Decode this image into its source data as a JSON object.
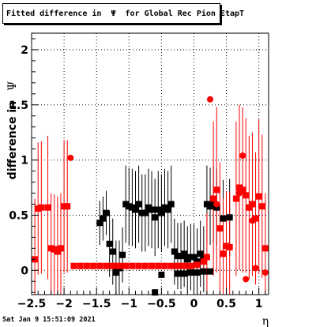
{
  "title": "Fitted difference in  Ψ  for Global Rec Pion EtapT",
  "ylabel_prefix": "difference in",
  "ylabel_symbol": "Ψ",
  "xlabel": "η",
  "timestamp": "Sat Jan  9 15:51:09 2021",
  "colors": {
    "series_black": "#000000",
    "series_red": "#ff0000",
    "frame": "#000000",
    "grid": "#000000"
  },
  "chart_data": {
    "type": "scatter",
    "xlim": [
      -2.5,
      1.15
    ],
    "ylim": [
      -0.22,
      2.15
    ],
    "xticks": [
      -2.5,
      -2,
      -1.5,
      -1,
      -0.5,
      0,
      0.5,
      1
    ],
    "xtick_labels": [
      "−2.5",
      "−2",
      "−1.5",
      "−1",
      "−0.5",
      "0",
      "0.5",
      "1"
    ],
    "yticks": [
      0,
      0.5,
      1,
      1.5,
      2
    ],
    "ytick_labels": [
      "0",
      "0.5",
      "1",
      "1.5",
      "2"
    ],
    "grid": true,
    "series": [
      {
        "color": "#000000",
        "marker": "square",
        "points": [
          {
            "x": -1.45,
            "y": 0.43,
            "err": 0.2
          },
          {
            "x": -1.4,
            "y": 0.47,
            "err": 0.2
          },
          {
            "x": -1.35,
            "y": 0.52,
            "err": 0.2
          },
          {
            "x": -1.3,
            "y": 0.24,
            "err": 0.3
          },
          {
            "x": -1.25,
            "y": 0.17,
            "err": 0.3
          },
          {
            "x": -1.2,
            "y": 0.02,
            "err": 0.25
          },
          {
            "x": -1.15,
            "y": 0.02,
            "err": 0.25
          },
          {
            "x": -1.1,
            "y": 0.14,
            "err": 0.25
          },
          {
            "x": -1.05,
            "y": 0.6,
            "err": 0.35
          },
          {
            "x": -1.0,
            "y": 0.58,
            "err": 0.35
          },
          {
            "x": -0.95,
            "y": 0.57,
            "err": 0.35
          },
          {
            "x": -0.9,
            "y": 0.55,
            "err": 0.35
          },
          {
            "x": -0.85,
            "y": 0.6,
            "err": 0.35
          },
          {
            "x": -0.8,
            "y": 0.52,
            "err": 0.35
          },
          {
            "x": -0.75,
            "y": 0.52,
            "err": 0.35
          },
          {
            "x": -0.7,
            "y": 0.57,
            "err": 0.35
          },
          {
            "x": -0.65,
            "y": 0.55,
            "err": 0.35
          },
          {
            "x": -0.6,
            "y": 0.48,
            "err": 0.35
          },
          {
            "x": -0.55,
            "y": 0.55,
            "err": 0.35
          },
          {
            "x": -0.5,
            "y": 0.52,
            "err": 0.35
          },
          {
            "x": -0.45,
            "y": 0.57,
            "err": 0.35
          },
          {
            "x": -0.4,
            "y": 0.55,
            "err": 0.35
          },
          {
            "x": -0.35,
            "y": 0.6,
            "err": 0.35
          },
          {
            "x": -0.3,
            "y": 0.17,
            "err": 0.3
          },
          {
            "x": -0.25,
            "y": 0.13,
            "err": 0.3
          },
          {
            "x": -0.2,
            "y": 0.13,
            "err": 0.3
          },
          {
            "x": -0.15,
            "y": 0.15,
            "err": 0.3
          },
          {
            "x": -0.1,
            "y": 0.1,
            "err": 0.3
          },
          {
            "x": -0.05,
            "y": 0.12,
            "err": 0.3
          },
          {
            "x": 0.0,
            "y": 0.12,
            "err": 0.3
          },
          {
            "x": 0.05,
            "y": 0.08,
            "err": 0.3
          },
          {
            "x": 0.1,
            "y": 0.15,
            "err": 0.3
          },
          {
            "x": 0.15,
            "y": 0.1,
            "err": 0.3
          },
          {
            "x": 0.2,
            "y": 0.6,
            "err": 0.35
          },
          {
            "x": 0.25,
            "y": 0.58,
            "err": 0.35
          },
          {
            "x": 0.3,
            "y": 0.6,
            "err": 0.35
          },
          {
            "x": 0.35,
            "y": 0.57,
            "err": 0.35
          },
          {
            "x": 0.45,
            "y": 0.47,
            "err": 0.35
          },
          {
            "x": 0.55,
            "y": 0.48,
            "err": 0.35
          },
          {
            "x": -1.2,
            "y": -0.02,
            "err": 0.0
          },
          {
            "x": -0.6,
            "y": -0.2,
            "err": 0.0
          },
          {
            "x": -0.5,
            "y": -0.04,
            "err": 0.0
          },
          {
            "x": -0.25,
            "y": -0.03,
            "err": 0.0
          },
          {
            "x": -0.15,
            "y": -0.03,
            "err": 0.0
          },
          {
            "x": -0.05,
            "y": -0.02,
            "err": 0.0
          },
          {
            "x": 0.05,
            "y": -0.02,
            "err": 0.0
          },
          {
            "x": 0.15,
            "y": -0.01,
            "err": 0.0
          },
          {
            "x": 0.25,
            "y": -0.01,
            "err": 0.0
          }
        ]
      },
      {
        "color": "#ff0000",
        "marker": "square",
        "points": [
          {
            "x": -2.45,
            "y": 0.1,
            "err": 0.55
          },
          {
            "x": -2.4,
            "y": 0.56,
            "err": 0.6
          },
          {
            "x": -2.35,
            "y": 0.57,
            "err": 0.6
          },
          {
            "x": -2.25,
            "y": 0.57,
            "err": 0.65
          },
          {
            "x": -2.2,
            "y": 0.2,
            "err": 0.5
          },
          {
            "x": -2.15,
            "y": 0.19,
            "err": 0.5
          },
          {
            "x": -2.1,
            "y": 0.17,
            "err": 0.5
          },
          {
            "x": -2.05,
            "y": 0.2,
            "err": 0.5
          },
          {
            "x": -2.0,
            "y": 0.58,
            "err": 0.6
          },
          {
            "x": -1.95,
            "y": 0.58,
            "err": 0.6
          },
          {
            "x": -1.85,
            "y": 0.04,
            "err": 0.03
          },
          {
            "x": -1.75,
            "y": 0.04,
            "err": 0.03
          },
          {
            "x": -1.65,
            "y": 0.04,
            "err": 0.03
          },
          {
            "x": -1.55,
            "y": 0.04,
            "err": 0.03
          },
          {
            "x": -1.45,
            "y": 0.04,
            "err": 0.03
          },
          {
            "x": -1.35,
            "y": 0.04,
            "err": 0.03
          },
          {
            "x": -1.25,
            "y": 0.04,
            "err": 0.03
          },
          {
            "x": -1.15,
            "y": 0.04,
            "err": 0.03
          },
          {
            "x": -1.05,
            "y": 0.04,
            "err": 0.03
          },
          {
            "x": -0.95,
            "y": 0.04,
            "err": 0.03
          },
          {
            "x": -0.85,
            "y": 0.04,
            "err": 0.03
          },
          {
            "x": -0.75,
            "y": 0.04,
            "err": 0.03
          },
          {
            "x": -0.65,
            "y": 0.04,
            "err": 0.03
          },
          {
            "x": -0.55,
            "y": 0.04,
            "err": 0.03
          },
          {
            "x": -0.45,
            "y": 0.04,
            "err": 0.03
          },
          {
            "x": -0.35,
            "y": 0.04,
            "err": 0.03
          },
          {
            "x": -0.25,
            "y": 0.04,
            "err": 0.03
          },
          {
            "x": -0.15,
            "y": 0.04,
            "err": 0.03
          },
          {
            "x": -0.05,
            "y": 0.04,
            "err": 0.03
          },
          {
            "x": 0.05,
            "y": 0.05,
            "err": 0.03
          },
          {
            "x": 0.15,
            "y": 0.08,
            "err": 0.1
          },
          {
            "x": 0.2,
            "y": 0.12,
            "err": 0.4
          },
          {
            "x": 0.3,
            "y": 0.65,
            "err": 0.7
          },
          {
            "x": 0.35,
            "y": 0.73,
            "err": 0.75
          },
          {
            "x": 0.4,
            "y": 0.38,
            "err": 0.6
          },
          {
            "x": 0.45,
            "y": 0.15,
            "err": 0.5
          },
          {
            "x": 0.5,
            "y": 0.22,
            "err": 0.5
          },
          {
            "x": 0.55,
            "y": 0.21,
            "err": 0.5
          },
          {
            "x": 0.65,
            "y": 0.65,
            "err": 0.7
          },
          {
            "x": 0.7,
            "y": 0.75,
            "err": 0.75
          },
          {
            "x": 0.75,
            "y": 0.73,
            "err": 0.75
          },
          {
            "x": 0.8,
            "y": 0.68,
            "err": 0.7
          },
          {
            "x": 0.85,
            "y": 0.57,
            "err": 0.65
          },
          {
            "x": 0.9,
            "y": 0.6,
            "err": 0.65
          },
          {
            "x": 0.95,
            "y": 0.47,
            "err": 0.6
          },
          {
            "x": 1.0,
            "y": 0.67,
            "err": 0.7
          },
          {
            "x": 1.05,
            "y": 0.58,
            "err": 0.65
          },
          {
            "x": 1.1,
            "y": 0.2,
            "err": 0.5
          }
        ]
      },
      {
        "color": "#ff0000",
        "marker": "circle",
        "points": [
          {
            "x": -1.9,
            "y": 1.02,
            "err": 0.0
          },
          {
            "x": 0.25,
            "y": 1.55,
            "err": 0.0
          },
          {
            "x": 0.75,
            "y": 1.04,
            "err": 0.0
          },
          {
            "x": 0.7,
            "y": 0.7,
            "err": 0.0
          },
          {
            "x": 0.9,
            "y": 0.45,
            "err": 0.0
          },
          {
            "x": 0.95,
            "y": 0.02,
            "err": 0.0
          },
          {
            "x": 0.8,
            "y": -0.08,
            "err": 0.0
          },
          {
            "x": 1.1,
            "y": -0.02,
            "err": 0.0
          },
          {
            "x": 0.35,
            "y": 0.6,
            "err": 0.0
          }
        ]
      }
    ]
  }
}
